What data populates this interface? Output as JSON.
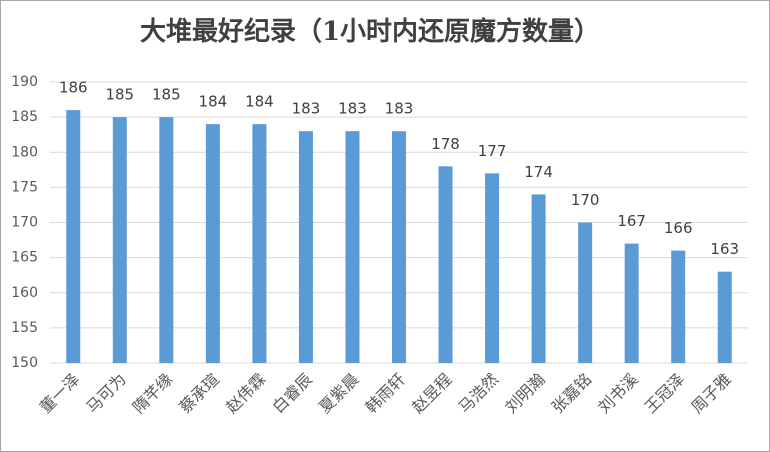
{
  "chart_data": {
    "type": "bar",
    "title": "大堆最好纪录（1小时内还原魔方数量）",
    "categories": [
      "董一泽",
      "马可为",
      "隋芊缘",
      "蔡承瑄",
      "赵伟霖",
      "白睿辰",
      "夏紫晨",
      "韩雨轩",
      "赵昱程",
      "马浩然",
      "刘明瀚",
      "张嘉铭",
      "刘书溪",
      "王冠泽",
      "周子雅"
    ],
    "values": [
      186,
      185,
      185,
      184,
      184,
      183,
      183,
      183,
      178,
      177,
      174,
      170,
      167,
      166,
      163
    ],
    "color": "#5b9bd5",
    "ylim": [
      150,
      190
    ],
    "yticks": [
      150,
      155,
      160,
      165,
      170,
      175,
      180,
      185,
      190
    ],
    "grid": true
  }
}
